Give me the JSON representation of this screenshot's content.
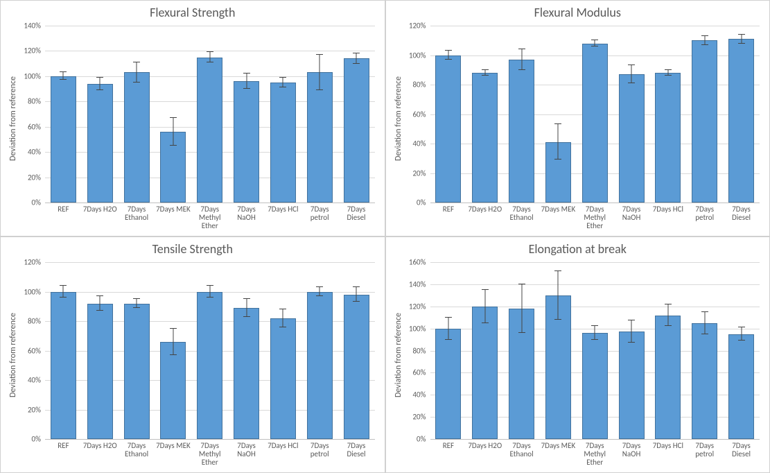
{
  "global": {
    "background_color": "#ffffff",
    "panel_border_color": "#d0d0d0",
    "text_color": "#595959",
    "grid_color": "#d9d9d9",
    "axis_color": "#bfbfbf",
    "title_fontsize": 18,
    "label_fontsize": 12,
    "xlabel_fontsize": 11,
    "ytick_fontsize": 11,
    "error_bar_color": "#444444",
    "error_cap_width": 10,
    "error_line_width": 1
  },
  "charts": [
    {
      "title": "Flexural Strength",
      "type": "bar",
      "ylabel": "Deviation from reference",
      "ylim": [
        0,
        140
      ],
      "ytick_step": 20,
      "ytick_suffix": "%",
      "bar_color": "#5b9bd5",
      "bar_border_color": "#41719c",
      "bar_width": 0.7,
      "categories": [
        "REF",
        "7Days H2O",
        "7Days Ethanol",
        "7Days MEK",
        "7Days Methyl Ether",
        "7Days NaOH",
        "7Days HCl",
        "7Days petrol",
        "7Days Diesel"
      ],
      "values": [
        100,
        94,
        103,
        56,
        115,
        96,
        95,
        103,
        114
      ],
      "errors": [
        3,
        5,
        8,
        11,
        4,
        6,
        4,
        14,
        4
      ]
    },
    {
      "title": "Flexural Modulus",
      "type": "bar",
      "ylabel": "Deviation from reference",
      "ylim": [
        0,
        120
      ],
      "ytick_step": 20,
      "ytick_suffix": "%",
      "bar_color": "#5b9bd5",
      "bar_border_color": "#41719c",
      "bar_width": 0.7,
      "categories": [
        "REF",
        "7Days H2O",
        "7Days Ethanol",
        "7Days MEK",
        "7Days Methyl Ether",
        "7Days NaOH",
        "7Days HCl",
        "7Days petrol",
        "7Days Diesel"
      ],
      "values": [
        100,
        88,
        97,
        41,
        108,
        87,
        88,
        110,
        111
      ],
      "errors": [
        3,
        2,
        7,
        12,
        2,
        6,
        2,
        3,
        3
      ]
    },
    {
      "title": "Tensile Strength",
      "type": "bar",
      "ylabel": "Deviation from reference",
      "ylim": [
        0,
        120
      ],
      "ytick_step": 20,
      "ytick_suffix": "%",
      "bar_color": "#5b9bd5",
      "bar_border_color": "#41719c",
      "bar_width": 0.7,
      "categories": [
        "REF",
        "7Days H2O",
        "7Days Ethanol",
        "7Days MEK",
        "7Days Methyl Ether",
        "7Days NaOH",
        "7Days HCl",
        "7Days petrol",
        "7Days Diesel"
      ],
      "values": [
        100,
        92,
        92,
        66,
        100,
        89,
        82,
        100,
        98
      ],
      "errors": [
        4,
        5,
        3,
        9,
        4,
        6,
        6,
        3,
        5
      ]
    },
    {
      "title": "Elongation at break",
      "type": "bar",
      "ylabel": "Deviation from reference",
      "ylim": [
        0,
        160
      ],
      "ytick_step": 20,
      "ytick_suffix": "%",
      "bar_color": "#5b9bd5",
      "bar_border_color": "#41719c",
      "bar_width": 0.7,
      "categories": [
        "REF",
        "7Days H2O",
        "7Days Ethanol",
        "7Days MEK",
        "7Days Methyl Ether",
        "7Days NaOH",
        "7Days HCl",
        "7Days petrol",
        "7Days Diesel"
      ],
      "values": [
        100,
        120,
        118,
        130,
        96,
        97,
        112,
        105,
        95
      ],
      "errors": [
        10,
        15,
        22,
        22,
        6,
        10,
        10,
        10,
        6
      ]
    }
  ]
}
